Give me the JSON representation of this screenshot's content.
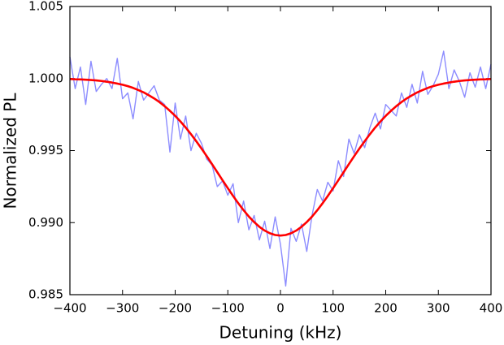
{
  "chart_data": {
    "type": "line",
    "xlabel": "Detuning (kHz)",
    "ylabel": "Normalized PL",
    "x": [
      -400,
      -390,
      -380,
      -370,
      -360,
      -350,
      -340,
      -330,
      -320,
      -310,
      -300,
      -290,
      -280,
      -270,
      -260,
      -250,
      -240,
      -230,
      -220,
      -210,
      -200,
      -190,
      -180,
      -170,
      -160,
      -150,
      -140,
      -130,
      -120,
      -110,
      -100,
      -90,
      -80,
      -70,
      -60,
      -50,
      -40,
      -30,
      -20,
      -10,
      0,
      10,
      20,
      30,
      40,
      50,
      60,
      70,
      80,
      90,
      100,
      110,
      120,
      130,
      140,
      150,
      160,
      170,
      180,
      190,
      200,
      210,
      220,
      230,
      240,
      250,
      260,
      270,
      280,
      290,
      300,
      310,
      320,
      330,
      340,
      350,
      360,
      370,
      380,
      390,
      400
    ],
    "series": [
      {
        "color": "#8080ff",
        "width": 1.4,
        "opacity": 0.9,
        "values": [
          1.0015,
          0.9993,
          1.0008,
          0.9982,
          1.0012,
          0.9991,
          0.9996,
          1.0,
          0.9993,
          1.0014,
          0.9986,
          0.999,
          0.9972,
          0.9998,
          0.9985,
          0.999,
          0.9995,
          0.9985,
          0.9982,
          0.9949,
          0.9983,
          0.9958,
          0.9974,
          0.995,
          0.9962,
          0.9955,
          0.9944,
          0.994,
          0.9925,
          0.9929,
          0.9919,
          0.9927,
          0.99,
          0.9915,
          0.9895,
          0.9905,
          0.9888,
          0.9901,
          0.9882,
          0.9904,
          0.9885,
          0.9856,
          0.9896,
          0.9887,
          0.9899,
          0.988,
          0.9905,
          0.9923,
          0.9915,
          0.9928,
          0.9922,
          0.9943,
          0.9932,
          0.9958,
          0.9948,
          0.9961,
          0.9952,
          0.9966,
          0.9976,
          0.9965,
          0.9982,
          0.9978,
          0.9974,
          0.999,
          0.998,
          0.9996,
          0.9983,
          1.0005,
          0.9989,
          0.9995,
          1.0003,
          1.0019,
          0.9993,
          1.0006,
          0.9998,
          0.9987,
          1.0004,
          0.9994,
          1.0008,
          0.9993,
          1.001
        ]
      },
      {
        "color": "#ff0000",
        "width": 2.6,
        "opacity": 1,
        "values": [
          0.99997,
          0.99995,
          0.99994,
          0.99992,
          0.9999,
          0.99987,
          0.99983,
          0.99978,
          0.99972,
          0.99965,
          0.99957,
          0.99947,
          0.99935,
          0.9992,
          0.99904,
          0.99884,
          0.99862,
          0.99837,
          0.99808,
          0.99776,
          0.99741,
          0.99702,
          0.9966,
          0.99614,
          0.99565,
          0.99514,
          0.99461,
          0.99406,
          0.9935,
          0.99294,
          0.99239,
          0.99185,
          0.99134,
          0.99086,
          0.99042,
          0.99004,
          0.98971,
          0.98945,
          0.98926,
          0.98914,
          0.9891,
          0.98914,
          0.98926,
          0.98945,
          0.98971,
          0.99004,
          0.99042,
          0.99086,
          0.99134,
          0.99185,
          0.99239,
          0.99294,
          0.9935,
          0.99406,
          0.99461,
          0.99514,
          0.99565,
          0.99614,
          0.9966,
          0.99702,
          0.99741,
          0.99776,
          0.99808,
          0.99837,
          0.99862,
          0.99884,
          0.99904,
          0.9992,
          0.99935,
          0.99947,
          0.99957,
          0.99965,
          0.99972,
          0.99978,
          0.99983,
          0.99987,
          0.9999,
          0.99992,
          0.99994,
          0.99995,
          0.99997
        ]
      }
    ],
    "xlim": [
      -400,
      400
    ],
    "xticks": [
      {
        "value": -400,
        "label": "−400"
      },
      {
        "value": -300,
        "label": "−300"
      },
      {
        "value": -200,
        "label": "−200"
      },
      {
        "value": -100,
        "label": "−100"
      },
      0,
      100,
      200,
      300,
      400
    ],
    "ylim": [
      0.985,
      1.005
    ],
    "yticks": [
      0.985,
      {
        "value": 0.99,
        "label": "0.990"
      },
      0.995,
      {
        "value": 1,
        "label": "1.000"
      },
      {
        "value": 1.005,
        "label": "1.005"
      }
    ],
    "grid": false
  }
}
